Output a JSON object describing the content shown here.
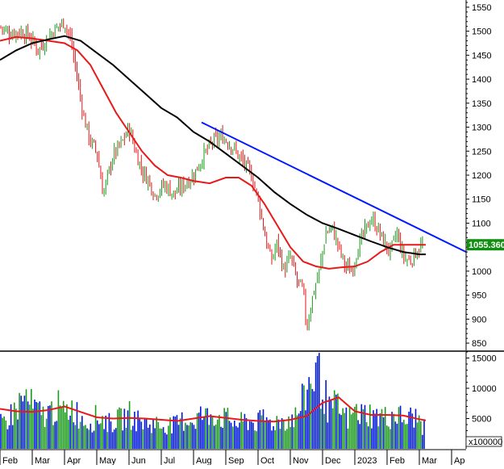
{
  "chart_data": [
    {
      "type": "candlestick",
      "title": "",
      "price_axis": {
        "ticks": [
          850,
          900,
          950,
          1000,
          1050,
          1100,
          1150,
          1200,
          1250,
          1300,
          1350,
          1400,
          1450,
          1500,
          1550
        ],
        "range": [
          835,
          1565
        ]
      },
      "last_price_label": "1055.360",
      "x_axis_labels": [
        {
          "label": "Feb",
          "x": 0
        },
        {
          "label": "Mar",
          "x": 1
        },
        {
          "label": "Apr",
          "x": 2
        },
        {
          "label": "May",
          "x": 3
        },
        {
          "label": "Jun",
          "x": 4
        },
        {
          "label": "Jul",
          "x": 5
        },
        {
          "label": "Aug",
          "x": 6
        },
        {
          "label": "Sep",
          "x": 7
        },
        {
          "label": "Oct",
          "x": 8
        },
        {
          "label": "Nov",
          "x": 9
        },
        {
          "label": "Dec",
          "x": 10
        },
        {
          "label": "2023",
          "x": 11
        },
        {
          "label": "Feb",
          "x": 12
        },
        {
          "label": "Mar",
          "x": 13
        },
        {
          "label": "Ap",
          "x": 14
        }
      ],
      "x_range": [
        0,
        14.45
      ],
      "price_series": [
        [
          0.0,
          1510
        ],
        [
          0.3,
          1495
        ],
        [
          0.6,
          1500
        ],
        [
          0.9,
          1490
        ],
        [
          1.2,
          1460
        ],
        [
          1.5,
          1490
        ],
        [
          1.8,
          1510
        ],
        [
          2.0,
          1520
        ],
        [
          2.2,
          1480
        ],
        [
          2.4,
          1400
        ],
        [
          2.6,
          1320
        ],
        [
          2.8,
          1270
        ],
        [
          3.0,
          1250
        ],
        [
          3.2,
          1160
        ],
        [
          3.5,
          1240
        ],
        [
          3.8,
          1270
        ],
        [
          4.0,
          1300
        ],
        [
          4.2,
          1250
        ],
        [
          4.4,
          1210
        ],
        [
          4.6,
          1190
        ],
        [
          4.8,
          1160
        ],
        [
          5.1,
          1180
        ],
        [
          5.4,
          1160
        ],
        [
          5.7,
          1180
        ],
        [
          6.0,
          1200
        ],
        [
          6.3,
          1240
        ],
        [
          6.6,
          1270
        ],
        [
          6.9,
          1280
        ],
        [
          7.2,
          1260
        ],
        [
          7.5,
          1230
        ],
        [
          7.8,
          1200
        ],
        [
          8.0,
          1150
        ],
        [
          8.2,
          1080
        ],
        [
          8.4,
          1020
        ],
        [
          8.6,
          1060
        ],
        [
          8.8,
          1000
        ],
        [
          9.0,
          1030
        ],
        [
          9.2,
          980
        ],
        [
          9.4,
          960
        ],
        [
          9.5,
          880
        ],
        [
          9.7,
          950
        ],
        [
          9.9,
          1000
        ],
        [
          10.1,
          1080
        ],
        [
          10.3,
          1090
        ],
        [
          10.5,
          1050
        ],
        [
          10.7,
          1010
        ],
        [
          10.9,
          1000
        ],
        [
          11.1,
          1050
        ],
        [
          11.3,
          1080
        ],
        [
          11.5,
          1110
        ],
        [
          11.7,
          1090
        ],
        [
          11.9,
          1060
        ],
        [
          12.1,
          1040
        ],
        [
          12.3,
          1080
        ],
        [
          12.5,
          1030
        ],
        [
          12.7,
          1020
        ],
        [
          12.9,
          1040
        ],
        [
          13.1,
          1055
        ]
      ],
      "overlays": [
        {
          "color": "#e8191a",
          "points": [
            [
              0.0,
              1480
            ],
            [
              0.5,
              1488
            ],
            [
              1.0,
              1485
            ],
            [
              1.5,
              1480
            ],
            [
              2.0,
              1475
            ],
            [
              2.4,
              1460
            ],
            [
              2.8,
              1430
            ],
            [
              3.2,
              1380
            ],
            [
              3.6,
              1330
            ],
            [
              4.0,
              1290
            ],
            [
              4.4,
              1250
            ],
            [
              4.8,
              1220
            ],
            [
              5.2,
              1200
            ],
            [
              5.6,
              1195
            ],
            [
              6.0,
              1188
            ],
            [
              6.5,
              1183
            ],
            [
              7.0,
              1195
            ],
            [
              7.4,
              1195
            ],
            [
              7.8,
              1178
            ],
            [
              8.2,
              1140
            ],
            [
              8.6,
              1095
            ],
            [
              9.0,
              1050
            ],
            [
              9.4,
              1020
            ],
            [
              9.8,
              1010
            ],
            [
              10.2,
              1005
            ],
            [
              10.6,
              1008
            ],
            [
              11.0,
              1010
            ],
            [
              11.4,
              1020
            ],
            [
              11.8,
              1040
            ],
            [
              12.2,
              1055
            ],
            [
              12.6,
              1055
            ],
            [
              13.0,
              1055
            ],
            [
              13.2,
              1055
            ]
          ]
        },
        {
          "color": "#000000",
          "points": [
            [
              0.0,
              1440
            ],
            [
              0.5,
              1460
            ],
            [
              1.0,
              1475
            ],
            [
              1.5,
              1483
            ],
            [
              2.0,
              1490
            ],
            [
              2.5,
              1480
            ],
            [
              3.0,
              1455
            ],
            [
              3.5,
              1430
            ],
            [
              4.0,
              1400
            ],
            [
              4.5,
              1370
            ],
            [
              5.0,
              1340
            ],
            [
              5.5,
              1320
            ],
            [
              6.0,
              1290
            ],
            [
              6.5,
              1270
            ],
            [
              7.0,
              1245
            ],
            [
              7.5,
              1220
            ],
            [
              8.0,
              1195
            ],
            [
              8.5,
              1165
            ],
            [
              9.0,
              1140
            ],
            [
              9.5,
              1118
            ],
            [
              10.0,
              1100
            ],
            [
              10.5,
              1088
            ],
            [
              11.0,
              1075
            ],
            [
              11.5,
              1062
            ],
            [
              12.0,
              1050
            ],
            [
              12.5,
              1040
            ],
            [
              13.0,
              1035
            ],
            [
              13.2,
              1035
            ]
          ]
        },
        {
          "color": "#0018ff",
          "points": [
            [
              6.25,
              1310
            ],
            [
              14.45,
              1040
            ]
          ]
        }
      ]
    },
    {
      "type": "bar",
      "title": "",
      "volume_axis": {
        "ticks": [
          5000,
          10000,
          15000
        ],
        "range": [
          0,
          16000
        ],
        "unit_label": "x100000"
      },
      "x_range": [
        0,
        14.45
      ],
      "volume_bars": [
        [
          0.0,
          4300
        ],
        [
          0.2,
          5100
        ],
        [
          0.4,
          6200
        ],
        [
          0.6,
          7800
        ],
        [
          0.8,
          8900
        ],
        [
          1.0,
          7200
        ],
        [
          1.2,
          6300
        ],
        [
          1.4,
          5800
        ],
        [
          1.6,
          6600
        ],
        [
          1.8,
          7300
        ],
        [
          2.0,
          5900
        ],
        [
          2.2,
          7400
        ],
        [
          2.4,
          6100
        ],
        [
          2.6,
          5000
        ],
        [
          2.8,
          4600
        ],
        [
          3.0,
          5600
        ],
        [
          3.2,
          5200
        ],
        [
          3.4,
          4400
        ],
        [
          3.6,
          4900
        ],
        [
          3.8,
          5300
        ],
        [
          4.0,
          6000
        ],
        [
          4.2,
          5100
        ],
        [
          4.4,
          4700
        ],
        [
          4.6,
          4200
        ],
        [
          4.8,
          4500
        ],
        [
          5.0,
          3900
        ],
        [
          5.2,
          4300
        ],
        [
          5.4,
          4000
        ],
        [
          5.6,
          4700
        ],
        [
          5.8,
          5200
        ],
        [
          6.0,
          4800
        ],
        [
          6.2,
          5900
        ],
        [
          6.4,
          5500
        ],
        [
          6.6,
          6300
        ],
        [
          6.8,
          5600
        ],
        [
          7.0,
          5200
        ],
        [
          7.2,
          4800
        ],
        [
          7.4,
          4200
        ],
        [
          7.6,
          5000
        ],
        [
          7.8,
          4600
        ],
        [
          8.0,
          4500
        ],
        [
          8.2,
          5400
        ],
        [
          8.4,
          4400
        ],
        [
          8.6,
          4900
        ],
        [
          8.8,
          5000
        ],
        [
          9.0,
          5200
        ],
        [
          9.2,
          5700
        ],
        [
          9.4,
          8400
        ],
        [
          9.6,
          11500
        ],
        [
          9.8,
          13600
        ],
        [
          10.0,
          10800
        ],
        [
          10.2,
          6500
        ],
        [
          10.4,
          7500
        ],
        [
          10.6,
          6200
        ],
        [
          10.8,
          5100
        ],
        [
          11.0,
          6500
        ],
        [
          11.2,
          5900
        ],
        [
          11.4,
          6400
        ],
        [
          11.6,
          5400
        ],
        [
          11.8,
          5900
        ],
        [
          12.0,
          5200
        ],
        [
          12.2,
          6100
        ],
        [
          12.4,
          5600
        ],
        [
          12.6,
          4800
        ],
        [
          12.8,
          5800
        ],
        [
          13.0,
          4900
        ],
        [
          13.2,
          3200
        ]
      ],
      "overlays": [
        {
          "color": "#e8191a",
          "points": [
            [
              0.0,
              6600
            ],
            [
              0.5,
              6200
            ],
            [
              1.0,
              6100
            ],
            [
              1.5,
              6400
            ],
            [
              2.0,
              7000
            ],
            [
              2.5,
              6100
            ],
            [
              3.0,
              5200
            ],
            [
              3.5,
              5000
            ],
            [
              4.0,
              5100
            ],
            [
              4.5,
              5000
            ],
            [
              5.0,
              4800
            ],
            [
              5.5,
              4600
            ],
            [
              6.0,
              5000
            ],
            [
              6.5,
              5400
            ],
            [
              7.0,
              5100
            ],
            [
              7.5,
              4800
            ],
            [
              8.0,
              4600
            ],
            [
              8.5,
              4500
            ],
            [
              9.0,
              4800
            ],
            [
              9.5,
              5400
            ],
            [
              10.0,
              7600
            ],
            [
              10.5,
              8500
            ],
            [
              11.0,
              6200
            ],
            [
              11.5,
              5600
            ],
            [
              12.0,
              5600
            ],
            [
              12.5,
              5500
            ],
            [
              13.0,
              4900
            ],
            [
              13.2,
              4700
            ]
          ]
        }
      ]
    }
  ]
}
